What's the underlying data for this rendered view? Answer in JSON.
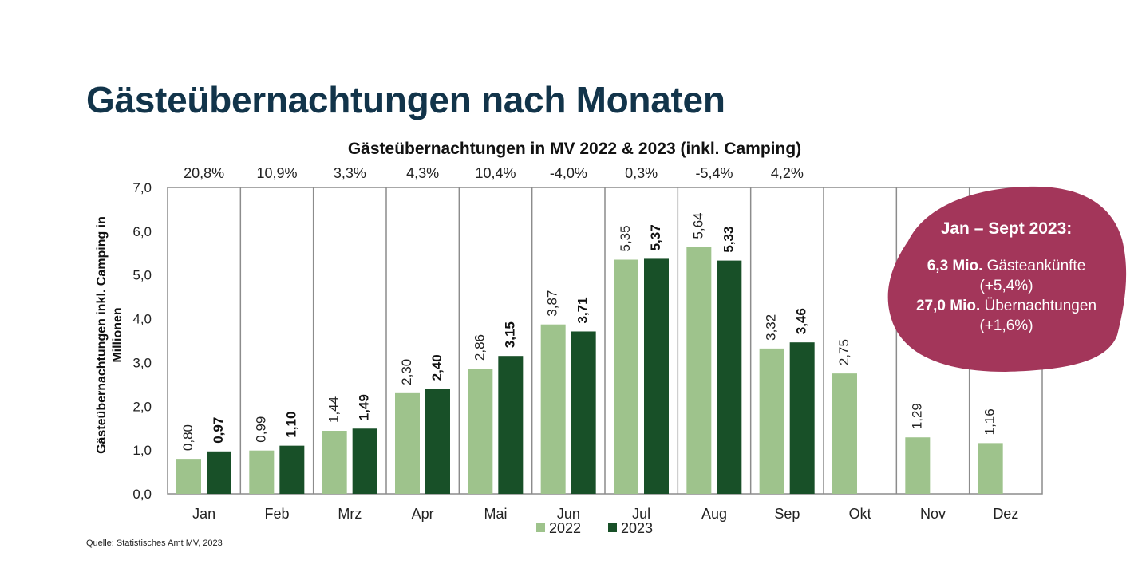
{
  "page": {
    "title": "Gästeübernachtungen nach Monaten",
    "source": "Quelle: Statistisches Amt MV, 2023"
  },
  "chart_data": {
    "type": "bar",
    "title": "Gästeübernachtungen in MV 2022 & 2023 (inkl. Camping)",
    "ylabel": "Gästeübernachtungen inkl. Camping in Millionen",
    "xlabel": "",
    "ylim": [
      0,
      7
    ],
    "yticks": [
      "0,0",
      "1,0",
      "2,0",
      "3,0",
      "4,0",
      "5,0",
      "6,0",
      "7,0"
    ],
    "categories": [
      "Jan",
      "Feb",
      "Mrz",
      "Apr",
      "Mai",
      "Jun",
      "Jul",
      "Aug",
      "Sep",
      "Okt",
      "Nov",
      "Dez"
    ],
    "series": [
      {
        "name": "2022",
        "color": "#9ec38c",
        "values": [
          0.8,
          0.99,
          1.44,
          2.3,
          2.86,
          3.87,
          5.35,
          5.64,
          3.32,
          2.75,
          1.29,
          1.16
        ],
        "labels": [
          "0,80",
          "0,99",
          "1,44",
          "2,30",
          "2,86",
          "3,87",
          "5,35",
          "5,64",
          "3,32",
          "2,75",
          "1,29",
          "1,16"
        ]
      },
      {
        "name": "2023",
        "color": "#185028",
        "values": [
          0.97,
          1.1,
          1.49,
          2.4,
          3.15,
          3.71,
          5.37,
          5.33,
          3.46,
          null,
          null,
          null
        ],
        "labels": [
          "0,97",
          "1,10",
          "1,49",
          "2,40",
          "3,15",
          "3,71",
          "5,37",
          "5,33",
          "3,46",
          "",
          "",
          ""
        ]
      }
    ],
    "change_labels": [
      "20,8%",
      "10,9%",
      "3,3%",
      "4,3%",
      "10,4%",
      "-4,0%",
      "0,3%",
      "-5,4%",
      "4,2%",
      "",
      "",
      ""
    ],
    "legend_position": "bottom-center",
    "grid": "vertical-separators"
  },
  "callout": {
    "color": "#a3365a",
    "heading": "Jan – Sept 2023:",
    "line1_bold": "6,3 Mio.",
    "line1_text": " Gästeankünfte",
    "line2": "(+5,4%)",
    "line3_bold": "27,0 Mio.",
    "line3_text": " Übernachtungen",
    "line4": "(+1,6%)"
  }
}
